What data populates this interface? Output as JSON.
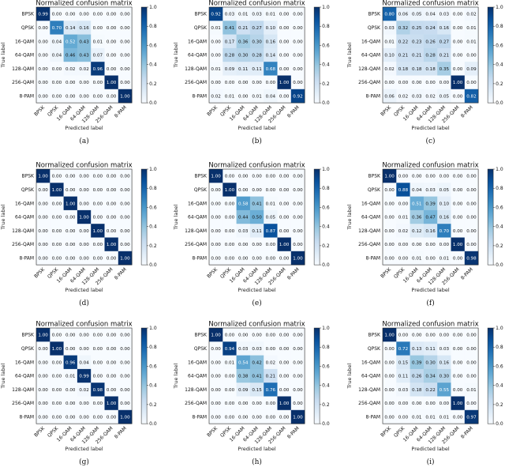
{
  "chart_data": [
    {
      "type": "heatmap",
      "caption": "(a)",
      "title": "Normalized confusion matrix",
      "xlabel": "Predicted label",
      "ylabel": "True label",
      "labels": [
        "BPSK",
        "QPSK",
        "16-QAM",
        "64-QAM",
        "128-QAM",
        "256-QAM",
        "8-PAM"
      ],
      "colorbar_ticks": [
        "0.0",
        "0.2",
        "0.4",
        "0.6",
        "0.8",
        "1.0"
      ],
      "range": [
        0,
        1
      ],
      "values": [
        [
          0.99,
          0,
          0,
          0,
          0,
          0,
          0
        ],
        [
          0,
          0.7,
          0.14,
          0.16,
          0,
          0,
          0
        ],
        [
          0,
          0.04,
          0.52,
          0.43,
          0.01,
          0,
          0
        ],
        [
          0,
          0.04,
          0.46,
          0.43,
          0.07,
          0,
          0
        ],
        [
          0,
          0,
          0.02,
          0.02,
          0.96,
          0,
          0
        ],
        [
          0,
          0,
          0,
          0,
          0,
          1.0,
          0
        ],
        [
          0,
          0,
          0,
          0,
          0,
          0,
          1.0
        ]
      ]
    },
    {
      "type": "heatmap",
      "caption": "(b)",
      "title": "Normalized confusion matrix",
      "xlabel": "Predicted label",
      "ylabel": "True label",
      "labels": [
        "BPSK",
        "QPSK",
        "16-QAM",
        "64-QAM",
        "128-QAM",
        "256-QAM",
        "8-PAM"
      ],
      "colorbar_ticks": [
        "0.0",
        "0.2",
        "0.4",
        "0.6",
        "0.8",
        "1.0"
      ],
      "range": [
        0,
        1
      ],
      "values": [
        [
          0.92,
          0.03,
          0.01,
          0.03,
          0.01,
          0,
          0
        ],
        [
          0.01,
          0.41,
          0.21,
          0.27,
          0.1,
          0,
          0
        ],
        [
          0,
          0.17,
          0.36,
          0.3,
          0.16,
          0,
          0
        ],
        [
          0,
          0.28,
          0.3,
          0.28,
          0.14,
          0,
          0
        ],
        [
          0.01,
          0.09,
          0.11,
          0.11,
          0.68,
          0,
          0
        ],
        [
          0,
          0,
          0,
          0,
          0,
          1.0,
          0
        ],
        [
          0.02,
          0.01,
          0,
          0.01,
          0.04,
          0,
          0.92
        ]
      ]
    },
    {
      "type": "heatmap",
      "caption": "(c)",
      "title": "Normalized confusion matrix",
      "xlabel": "Predicted label",
      "ylabel": "True label",
      "labels": [
        "BPSK",
        "QPSK",
        "16-QAM",
        "64-QAM",
        "128-QAM",
        "256-QAM",
        "8-PAM"
      ],
      "colorbar_ticks": [
        "0.0",
        "0.2",
        "0.4",
        "0.6",
        "0.8",
        "1.0"
      ],
      "range": [
        0,
        1
      ],
      "values": [
        [
          0.8,
          0.06,
          0.05,
          0.04,
          0.03,
          0,
          0.02
        ],
        [
          0.03,
          0.32,
          0.25,
          0.24,
          0.16,
          0,
          0.01
        ],
        [
          0.01,
          0.22,
          0.23,
          0.26,
          0.27,
          0,
          0.01
        ],
        [
          0.1,
          0.21,
          0.21,
          0.28,
          0.21,
          0,
          0
        ],
        [
          0.02,
          0.18,
          0.18,
          0.18,
          0.35,
          0,
          0.09
        ],
        [
          0,
          0,
          0,
          0,
          0,
          1.0,
          0
        ],
        [
          0.06,
          0.02,
          0.03,
          0.02,
          0.05,
          0,
          0.82
        ]
      ]
    },
    {
      "type": "heatmap",
      "caption": "(d)",
      "title": "Normalized confusion matrix",
      "xlabel": "Predicted label",
      "ylabel": "True label",
      "labels": [
        "BPSK",
        "QPSK",
        "16-QAM",
        "64-QAM",
        "128-QAM",
        "256-QAM",
        "8-PAM"
      ],
      "colorbar_ticks": [
        "0.0",
        "0.2",
        "0.4",
        "0.6",
        "0.8",
        "1.0"
      ],
      "range": [
        0,
        1
      ],
      "values": [
        [
          1,
          0,
          0,
          0,
          0,
          0,
          0
        ],
        [
          0,
          1,
          0,
          0,
          0,
          0,
          0
        ],
        [
          0,
          0,
          1,
          0,
          0,
          0,
          0
        ],
        [
          0,
          0,
          0,
          1,
          0,
          0,
          0
        ],
        [
          0,
          0,
          0,
          0,
          1,
          0,
          0
        ],
        [
          0,
          0,
          0,
          0,
          0,
          1,
          0
        ],
        [
          0,
          0,
          0,
          0,
          0,
          0,
          1
        ]
      ]
    },
    {
      "type": "heatmap",
      "caption": "(e)",
      "title": "Normalized confusion matrix",
      "xlabel": "Predicted label",
      "ylabel": "True label",
      "labels": [
        "BPSK",
        "QPSK",
        "16-QAM",
        "64-QAM",
        "128-QAM",
        "256-QAM",
        "8-PAM"
      ],
      "colorbar_ticks": [
        "0.0",
        "0.2",
        "0.4",
        "0.6",
        "0.8",
        "1.0"
      ],
      "range": [
        0,
        1
      ],
      "values": [
        [
          1,
          0,
          0,
          0,
          0,
          0,
          0
        ],
        [
          0,
          1,
          0,
          0,
          0,
          0,
          0
        ],
        [
          0,
          0,
          0.58,
          0.41,
          0.01,
          0,
          0
        ],
        [
          0,
          0,
          0.44,
          0.5,
          0.05,
          0,
          0
        ],
        [
          0,
          0,
          0.03,
          0.11,
          0.87,
          0,
          0
        ],
        [
          0,
          0,
          0,
          0,
          0,
          1,
          0
        ],
        [
          0,
          0,
          0,
          0,
          0,
          0,
          1
        ]
      ]
    },
    {
      "type": "heatmap",
      "caption": "(f)",
      "title": "Normalized confusion matrix",
      "xlabel": "Predicted label",
      "ylabel": "True label",
      "labels": [
        "BPSK",
        "QPSK",
        "16-QAM",
        "64-QAM",
        "128-QAM",
        "256-QAM",
        "8-PAM"
      ],
      "colorbar_ticks": [
        "0.0",
        "0.2",
        "0.4",
        "0.6",
        "0.8",
        "1.0"
      ],
      "range": [
        0,
        1
      ],
      "values": [
        [
          1,
          0,
          0,
          0,
          0,
          0,
          0
        ],
        [
          0,
          0.88,
          0.04,
          0.03,
          0.05,
          0,
          0
        ],
        [
          0,
          0,
          0.51,
          0.39,
          0.1,
          0,
          0
        ],
        [
          0,
          0.01,
          0.36,
          0.47,
          0.16,
          0,
          0
        ],
        [
          0,
          0.02,
          0.12,
          0.16,
          0.7,
          0,
          0
        ],
        [
          0,
          0,
          0,
          0,
          0,
          1,
          0
        ],
        [
          0,
          0,
          0.01,
          0,
          0.01,
          0,
          0.98
        ]
      ]
    },
    {
      "type": "heatmap",
      "caption": "(g)",
      "title": "Normalized confusion matrix",
      "xlabel": "Predicted label",
      "ylabel": "True label",
      "labels": [
        "BPSK",
        "QPSK",
        "16-QAM",
        "64-QAM",
        "128-QAM",
        "256-QAM",
        "8-PAM"
      ],
      "colorbar_ticks": [
        "0.0",
        "0.2",
        "0.4",
        "0.6",
        "0.8",
        "1.0"
      ],
      "range": [
        0,
        1
      ],
      "values": [
        [
          1,
          0,
          0,
          0,
          0,
          0,
          0
        ],
        [
          0,
          1,
          0,
          0,
          0,
          0,
          0
        ],
        [
          0,
          0,
          0.96,
          0.04,
          0,
          0,
          0
        ],
        [
          0,
          0,
          0.01,
          0.99,
          0,
          0,
          0
        ],
        [
          0,
          0,
          0,
          0.02,
          0.98,
          0,
          0
        ],
        [
          0,
          0,
          0,
          0,
          0,
          1,
          0
        ],
        [
          0,
          0,
          0,
          0,
          0,
          0,
          1
        ]
      ]
    },
    {
      "type": "heatmap",
      "caption": "(h)",
      "title": "Normalized confusion matrix",
      "xlabel": "Predicted label",
      "ylabel": "True label",
      "labels": [
        "BPSK",
        "QPSK",
        "16-QAM",
        "64-QAM",
        "128-QAM",
        "256-QAM",
        "8-PAM"
      ],
      "colorbar_ticks": [
        "0.0",
        "0.2",
        "0.4",
        "0.6",
        "0.8",
        "1.0"
      ],
      "range": [
        0,
        1
      ],
      "values": [
        [
          1,
          0,
          0,
          0,
          0,
          0,
          0
        ],
        [
          0,
          0.94,
          0.03,
          0.03,
          0,
          0,
          0
        ],
        [
          0,
          0.01,
          0.54,
          0.42,
          0.02,
          0,
          0
        ],
        [
          0,
          0,
          0.38,
          0.41,
          0.21,
          0,
          0
        ],
        [
          0,
          0,
          0.09,
          0.15,
          0.76,
          0,
          0
        ],
        [
          0,
          0,
          0,
          0,
          0,
          1,
          0
        ],
        [
          0,
          0,
          0,
          0,
          0,
          0,
          1
        ]
      ]
    },
    {
      "type": "heatmap",
      "caption": "(i)",
      "title": "Normalized confusion matrix",
      "xlabel": "Predicted label",
      "ylabel": "True label",
      "labels": [
        "BPSK",
        "QPSK",
        "16-QAM",
        "64-QAM",
        "128-QAM",
        "256-QAM",
        "8-PAM"
      ],
      "colorbar_ticks": [
        "0.0",
        "0.2",
        "0.4",
        "0.6",
        "0.8",
        "1.0"
      ],
      "range": [
        0,
        1
      ],
      "values": [
        [
          1,
          0,
          0,
          0,
          0,
          0,
          0
        ],
        [
          0,
          0.72,
          0.13,
          0.11,
          0.03,
          0,
          0
        ],
        [
          0,
          0.15,
          0.39,
          0.3,
          0.16,
          0,
          0
        ],
        [
          0,
          0.11,
          0.26,
          0.34,
          0.3,
          0,
          0
        ],
        [
          0,
          0.03,
          0.18,
          0.22,
          0.55,
          0,
          0.01
        ],
        [
          0,
          0,
          0,
          0,
          0,
          1,
          0
        ],
        [
          0,
          0,
          0.01,
          0.01,
          0.01,
          0,
          0.97
        ]
      ]
    }
  ],
  "colors": {
    "low": "#f7fbff",
    "high": "#08306b"
  }
}
